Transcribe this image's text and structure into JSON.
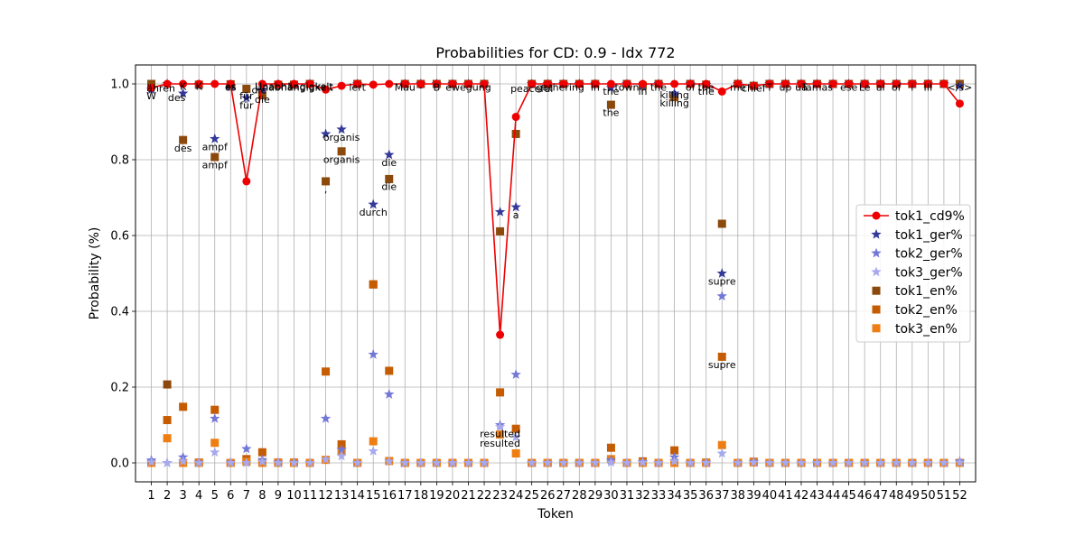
{
  "chart_data": {
    "type": "line",
    "title": "Probabilities for CD: 0.9 - Idx 772",
    "xlabel": "Token",
    "ylabel": "Probability (%)",
    "xlim": [
      0,
      53
    ],
    "ylim": [
      -0.05,
      1.05
    ],
    "x": [
      1,
      2,
      3,
      4,
      5,
      6,
      7,
      8,
      9,
      10,
      11,
      12,
      13,
      14,
      15,
      16,
      17,
      18,
      19,
      20,
      21,
      22,
      23,
      24,
      25,
      26,
      27,
      28,
      29,
      30,
      31,
      32,
      33,
      34,
      35,
      36,
      37,
      38,
      39,
      40,
      41,
      42,
      43,
      44,
      45,
      46,
      47,
      48,
      49,
      50,
      51,
      52
    ],
    "x_tick_labels": [
      "1",
      "2",
      "3",
      "4",
      "5",
      "6",
      "7",
      "8",
      "9",
      "10",
      "11",
      "12",
      "13",
      "14",
      "15",
      "16",
      "17",
      "18",
      "19",
      "20",
      "21",
      "22",
      "23",
      "24",
      "25",
      "26",
      "27",
      "28",
      "29",
      "30",
      "31",
      "32",
      "33",
      "34",
      "35",
      "36",
      "37",
      "38",
      "39",
      "40",
      "41",
      "42",
      "43",
      "44",
      "45",
      "46",
      "47",
      "48",
      "49",
      "50",
      "51",
      "52"
    ],
    "y_ticks": [
      0.0,
      0.2,
      0.4,
      0.6,
      0.8,
      1.0
    ],
    "y_tick_labels": [
      "0.0",
      "0.2",
      "0.4",
      "0.6",
      "0.8",
      "1.0"
    ],
    "grid": true,
    "legend_position": "right",
    "series": [
      {
        "name": "tok1_cd9%",
        "marker": "circle",
        "line": true,
        "color": "#ee0000",
        "values": [
          0.99,
          1.0,
          1.0,
          1.0,
          1.0,
          1.0,
          0.743,
          1.0,
          1.0,
          1.0,
          1.0,
          0.985,
          0.995,
          1.0,
          0.998,
          1.0,
          1.0,
          1.0,
          1.0,
          1.0,
          1.0,
          1.0,
          0.338,
          0.913,
          1.0,
          1.0,
          1.0,
          1.0,
          1.0,
          1.0,
          1.0,
          1.0,
          1.0,
          1.0,
          1.0,
          1.0,
          0.98,
          1.0,
          0.995,
          1.0,
          1.0,
          1.0,
          1.0,
          1.0,
          1.0,
          1.0,
          1.0,
          1.0,
          1.0,
          1.0,
          1.0,
          0.948
        ]
      },
      {
        "name": "tok1_ger%",
        "marker": "star",
        "line": false,
        "color": "#34399a",
        "values": [
          0.985,
          1.0,
          0.975,
          0.998,
          0.855,
          0.995,
          0.963,
          0.985,
          0.998,
          0.998,
          1.0,
          0.868,
          0.88,
          1.0,
          0.682,
          0.813,
          1.0,
          1.0,
          1.0,
          1.0,
          1.0,
          1.0,
          0.662,
          0.675,
          1.0,
          1.0,
          1.0,
          1.0,
          1.0,
          0.99,
          1.0,
          0.995,
          1.0,
          0.975,
          1.0,
          0.998,
          0.5,
          1.0,
          0.995,
          1.0,
          1.0,
          1.0,
          1.0,
          1.0,
          1.0,
          1.0,
          1.0,
          1.0,
          1.0,
          1.0,
          1.0,
          0.995
        ]
      },
      {
        "name": "tok2_ger%",
        "marker": "star",
        "line": false,
        "color": "#7377d6",
        "values": [
          0.007,
          0.0,
          0.015,
          0.001,
          0.117,
          0.001,
          0.037,
          0.008,
          0.001,
          0.001,
          0.0,
          0.117,
          0.035,
          0.0,
          0.286,
          0.181,
          0.0,
          0.0,
          0.0,
          0.0,
          0.0,
          0.0,
          0.1,
          0.233,
          0.0,
          0.0,
          0.0,
          0.0,
          0.0,
          0.007,
          0.0,
          0.003,
          0.0,
          0.015,
          0.0,
          0.001,
          0.44,
          0.0,
          0.003,
          0.0,
          0.0,
          0.0,
          0.0,
          0.0,
          0.0,
          0.0,
          0.0,
          0.0,
          0.0,
          0.0,
          0.0,
          0.004
        ]
      },
      {
        "name": "tok3_ger%",
        "marker": "star",
        "line": false,
        "color": "#a7a9ed",
        "values": [
          0.002,
          0.0,
          0.004,
          0.0,
          0.028,
          0.0,
          0.0,
          0.003,
          0.0,
          0.0,
          0.0,
          0.009,
          0.018,
          0.0,
          0.031,
          0.004,
          0.0,
          0.0,
          0.0,
          0.0,
          0.0,
          0.0,
          0.095,
          0.068,
          0.0,
          0.0,
          0.0,
          0.0,
          0.0,
          0.001,
          0.0,
          0.001,
          0.0,
          0.004,
          0.0,
          0.0,
          0.025,
          0.0,
          0.001,
          0.0,
          0.0,
          0.0,
          0.0,
          0.0,
          0.0,
          0.0,
          0.0,
          0.0,
          0.0,
          0.0,
          0.0,
          0.001
        ]
      },
      {
        "name": "tok1_en%",
        "marker": "square",
        "line": false,
        "color": "#8b4a0c",
        "values": [
          1.0,
          0.207,
          0.852,
          0.998,
          0.807,
          0.999,
          0.987,
          0.97,
          0.998,
          0.998,
          1.0,
          0.743,
          0.822,
          1.0,
          0.471,
          0.749,
          1.0,
          1.0,
          1.0,
          1.0,
          1.0,
          1.0,
          0.611,
          0.868,
          1.0,
          1.0,
          1.0,
          1.0,
          1.0,
          0.945,
          1.0,
          0.995,
          1.0,
          0.965,
          1.0,
          0.998,
          0.631,
          1.0,
          0.995,
          1.0,
          1.0,
          1.0,
          1.0,
          1.0,
          1.0,
          1.0,
          1.0,
          1.0,
          1.0,
          1.0,
          1.0,
          1.0
        ]
      },
      {
        "name": "tok2_en%",
        "marker": "square",
        "line": false,
        "color": "#c65c02",
        "values": [
          0.0,
          0.113,
          0.148,
          0.001,
          0.14,
          0.0,
          0.01,
          0.028,
          0.001,
          0.001,
          0.0,
          0.241,
          0.049,
          0.0,
          0.471,
          0.243,
          0.0,
          0.0,
          0.0,
          0.0,
          0.0,
          0.0,
          0.186,
          0.09,
          0.0,
          0.0,
          0.0,
          0.0,
          0.0,
          0.04,
          0.0,
          0.004,
          0.0,
          0.033,
          0.0,
          0.001,
          0.28,
          0.0,
          0.003,
          0.0,
          0.0,
          0.0,
          0.0,
          0.0,
          0.0,
          0.0,
          0.0,
          0.0,
          0.0,
          0.0,
          0.0,
          0.0
        ]
      },
      {
        "name": "tok3_en%",
        "marker": "square",
        "line": false,
        "color": "#ee7d12",
        "values": [
          0.0,
          0.065,
          0.0,
          0.0,
          0.053,
          0.0,
          0.003,
          0.0,
          0.0,
          0.0,
          0.0,
          0.008,
          0.03,
          0.0,
          0.057,
          0.005,
          0.0,
          0.0,
          0.0,
          0.0,
          0.0,
          0.0,
          0.075,
          0.025,
          0.0,
          0.0,
          0.0,
          0.0,
          0.0,
          0.01,
          0.0,
          0.0,
          0.0,
          0.0,
          0.0,
          0.0,
          0.047,
          0.0,
          0.001,
          0.0,
          0.0,
          0.0,
          0.0,
          0.0,
          0.0,
          0.0,
          0.0,
          0.0,
          0.0,
          0.0,
          0.0,
          0.0
        ]
      }
    ],
    "annotations": [
      {
        "text": "W",
        "x": 1,
        "y": 0.96
      },
      {
        "text": "ähren",
        "x": 1.6,
        "y": 0.98
      },
      {
        "text": "des",
        "x": 2.6,
        "y": 0.955
      },
      {
        "text": "K",
        "x": 3.0,
        "y": 0.985
      },
      {
        "text": "K",
        "x": 4,
        "y": 0.985
      },
      {
        "text": "es",
        "x": 6,
        "y": 0.985
      },
      {
        "text": "es",
        "x": 6,
        "y": 0.982
      },
      {
        "text": "für",
        "x": 7,
        "y": 0.96
      },
      {
        "text": "für",
        "x": 7,
        "y": 0.935
      },
      {
        "text": "die",
        "x": 8,
        "y": 0.95
      },
      {
        "text": "die",
        "x": 7.8,
        "y": 0.975
      },
      {
        "text": "Unabhängigkeit",
        "x": 10,
        "y": 0.985
      },
      {
        "text": "Unabhängigkeit",
        "x": 10,
        "y": 0.982
      },
      {
        "text": "iert",
        "x": 14,
        "y": 0.982
      },
      {
        "text": "Mau",
        "x": 17,
        "y": 0.982
      },
      {
        "text": "-",
        "x": 18,
        "y": 0.982
      },
      {
        "text": "B",
        "x": 19,
        "y": 0.982
      },
      {
        "text": "ewegung",
        "x": 21,
        "y": 0.982
      },
      {
        "text": "peaceful",
        "x": 25,
        "y": 0.978
      },
      {
        "text": "gathering",
        "x": 26.8,
        "y": 0.982
      },
      {
        "text": "in",
        "x": 29,
        "y": 0.982
      },
      {
        "text": "the",
        "x": 30,
        "y": 0.972
      },
      {
        "text": "the",
        "x": 30,
        "y": 0.916
      },
      {
        "text": "town",
        "x": 31,
        "y": 0.982
      },
      {
        "text": "in",
        "x": 32,
        "y": 0.972
      },
      {
        "text": "the",
        "x": 33,
        "y": 0.982
      },
      {
        "text": "killing",
        "x": 34,
        "y": 0.962
      },
      {
        "text": "killing",
        "x": 34,
        "y": 0.94
      },
      {
        "text": "of",
        "x": 35,
        "y": 0.982
      },
      {
        "text": "the",
        "x": 36,
        "y": 0.982
      },
      {
        "text": "the",
        "x": 36,
        "y": 0.972
      },
      {
        "text": "me",
        "x": 38,
        "y": 0.982
      },
      {
        "text": "chief",
        "x": 39,
        "y": 0.98
      },
      {
        "text": "T",
        "x": 40,
        "y": 0.982
      },
      {
        "text": "up",
        "x": 41,
        "y": 0.982
      },
      {
        "text": "ua",
        "x": 42,
        "y": 0.982
      },
      {
        "text": "Tamas",
        "x": 43,
        "y": 0.982
      },
      {
        "text": "ese",
        "x": 45,
        "y": 0.982
      },
      {
        "text": "Le",
        "x": 46,
        "y": 0.982
      },
      {
        "text": "al",
        "x": 47,
        "y": 0.982
      },
      {
        "text": "of",
        "x": 48,
        "y": 0.982
      },
      {
        "text": "i",
        "x": 49,
        "y": 0.982
      },
      {
        "text": "III",
        "x": 50,
        "y": 0.982
      },
      {
        "text": "</s>",
        "x": 52,
        "y": 0.982
      },
      {
        "text": "des",
        "x": 3,
        "y": 0.822
      },
      {
        "text": "ampf",
        "x": 5,
        "y": 0.825
      },
      {
        "text": "ampf",
        "x": 5,
        "y": 0.777
      },
      {
        "text": "organis",
        "x": 13,
        "y": 0.85
      },
      {
        "text": "organis",
        "x": 13,
        "y": 0.792
      },
      {
        "text": ",",
        "x": 12,
        "y": 0.713
      },
      {
        "text": "die",
        "x": 16,
        "y": 0.783
      },
      {
        "text": "die",
        "x": 16,
        "y": 0.72
      },
      {
        "text": "durch",
        "x": 15,
        "y": 0.652
      },
      {
        "text": "a",
        "x": 24,
        "y": 0.645
      },
      {
        "text": "supre",
        "x": 37,
        "y": 0.47
      },
      {
        "text": "supre",
        "x": 37,
        "y": 0.25
      },
      {
        "text": "resulted",
        "x": 23,
        "y": 0.068
      },
      {
        "text": "resulted",
        "x": 23,
        "y": 0.043
      }
    ]
  }
}
